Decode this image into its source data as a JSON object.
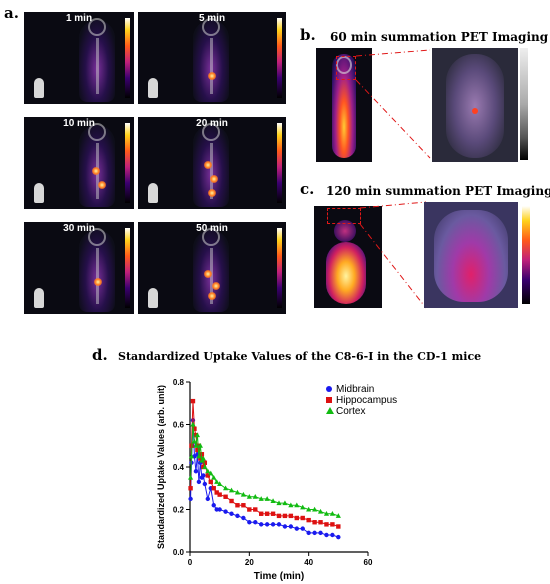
{
  "panel_a": {
    "letter": "a.",
    "timepoints": [
      "1 min",
      "5 min",
      "10 min",
      "20 min",
      "30 min",
      "50 min"
    ]
  },
  "panel_b": {
    "letter": "b.",
    "title": "60 min summation PET Imaging"
  },
  "panel_c": {
    "letter": "c.",
    "title": "120 min summation PET Imaging"
  },
  "panel_d": {
    "letter": "d.",
    "title": "Standardized Uptake Values of the C8-6-I in the CD-1 mice"
  },
  "chart_data": {
    "type": "line",
    "xlabel": "Time (min)",
    "ylabel": "Standardized Uptake Values (arb. unit)",
    "xlim": [
      0,
      60
    ],
    "ylim": [
      0,
      0.8
    ],
    "xticks": [
      "0",
      "20",
      "40",
      "60"
    ],
    "yticks": [
      "0.0",
      "0.2",
      "0.4",
      "0.6",
      "0.8"
    ],
    "grid": false,
    "legend_position": "top-right",
    "series": [
      {
        "name": "Midbrain",
        "color": "#1a1aee",
        "marker": "circle",
        "x": [
          0.2,
          0.5,
          1,
          1.5,
          2,
          2.5,
          3,
          3.5,
          4,
          4.5,
          5,
          6,
          7,
          8,
          9,
          10,
          12,
          14,
          16,
          18,
          20,
          22,
          24,
          26,
          28,
          30,
          32,
          34,
          36,
          38,
          40,
          42,
          44,
          46,
          48,
          50
        ],
        "y": [
          0.25,
          0.42,
          0.62,
          0.45,
          0.38,
          0.46,
          0.33,
          0.42,
          0.35,
          0.36,
          0.32,
          0.25,
          0.3,
          0.22,
          0.2,
          0.2,
          0.19,
          0.18,
          0.17,
          0.16,
          0.14,
          0.14,
          0.13,
          0.13,
          0.13,
          0.13,
          0.12,
          0.12,
          0.11,
          0.11,
          0.09,
          0.09,
          0.09,
          0.08,
          0.08,
          0.07
        ]
      },
      {
        "name": "Hippocampus",
        "color": "#dd1111",
        "marker": "square",
        "x": [
          0.2,
          0.5,
          1,
          1.5,
          2,
          2.5,
          3,
          3.5,
          4,
          4.5,
          5,
          6,
          7,
          8,
          9,
          10,
          12,
          14,
          16,
          18,
          20,
          22,
          24,
          26,
          28,
          30,
          32,
          34,
          36,
          38,
          40,
          42,
          44,
          46,
          48,
          50
        ],
        "y": [
          0.3,
          0.5,
          0.71,
          0.58,
          0.55,
          0.48,
          0.5,
          0.44,
          0.46,
          0.4,
          0.42,
          0.36,
          0.33,
          0.3,
          0.28,
          0.27,
          0.26,
          0.24,
          0.22,
          0.22,
          0.2,
          0.2,
          0.18,
          0.18,
          0.18,
          0.17,
          0.17,
          0.17,
          0.16,
          0.16,
          0.15,
          0.14,
          0.14,
          0.13,
          0.13,
          0.12
        ]
      },
      {
        "name": "Cortex",
        "color": "#11bb11",
        "marker": "triangle",
        "x": [
          0.2,
          0.5,
          1,
          1.5,
          2,
          2.5,
          3,
          3.5,
          4,
          4.5,
          5,
          6,
          7,
          8,
          9,
          10,
          12,
          14,
          16,
          18,
          20,
          22,
          24,
          26,
          28,
          30,
          32,
          34,
          36,
          38,
          40,
          42,
          44,
          46,
          48,
          50
        ],
        "y": [
          0.35,
          0.45,
          0.6,
          0.52,
          0.5,
          0.55,
          0.45,
          0.5,
          0.43,
          0.44,
          0.4,
          0.38,
          0.37,
          0.35,
          0.33,
          0.32,
          0.3,
          0.29,
          0.28,
          0.27,
          0.26,
          0.26,
          0.25,
          0.25,
          0.24,
          0.23,
          0.23,
          0.22,
          0.22,
          0.21,
          0.2,
          0.2,
          0.19,
          0.18,
          0.18,
          0.17
        ]
      }
    ]
  }
}
